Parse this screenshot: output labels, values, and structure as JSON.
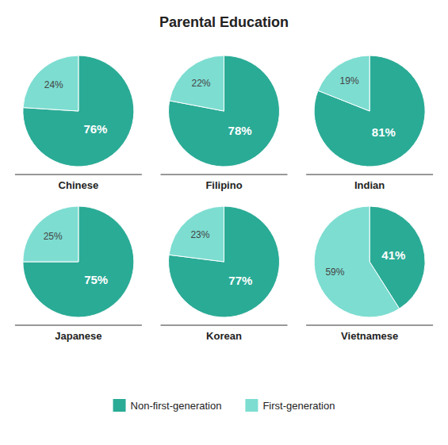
{
  "chart_data": {
    "type": "pie",
    "title": "Parental Education",
    "categories": [
      "Chinese",
      "Filipino",
      "Indian",
      "Japanese",
      "Korean",
      "Vietnamese"
    ],
    "series": [
      {
        "name": "Non-first-generation",
        "color": "#2aab96",
        "values": [
          76,
          78,
          81,
          75,
          77,
          41
        ],
        "value_labels": [
          "76%",
          "78%",
          "81%",
          "75%",
          "77%",
          "41%"
        ]
      },
      {
        "name": "First-generation",
        "color": "#7dddd1",
        "values": [
          24,
          22,
          19,
          25,
          23,
          59
        ],
        "value_labels": [
          "24%",
          "22%",
          "19%",
          "25%",
          "23%",
          "59%"
        ]
      }
    ],
    "data_labels": true,
    "legend": "bottom"
  }
}
